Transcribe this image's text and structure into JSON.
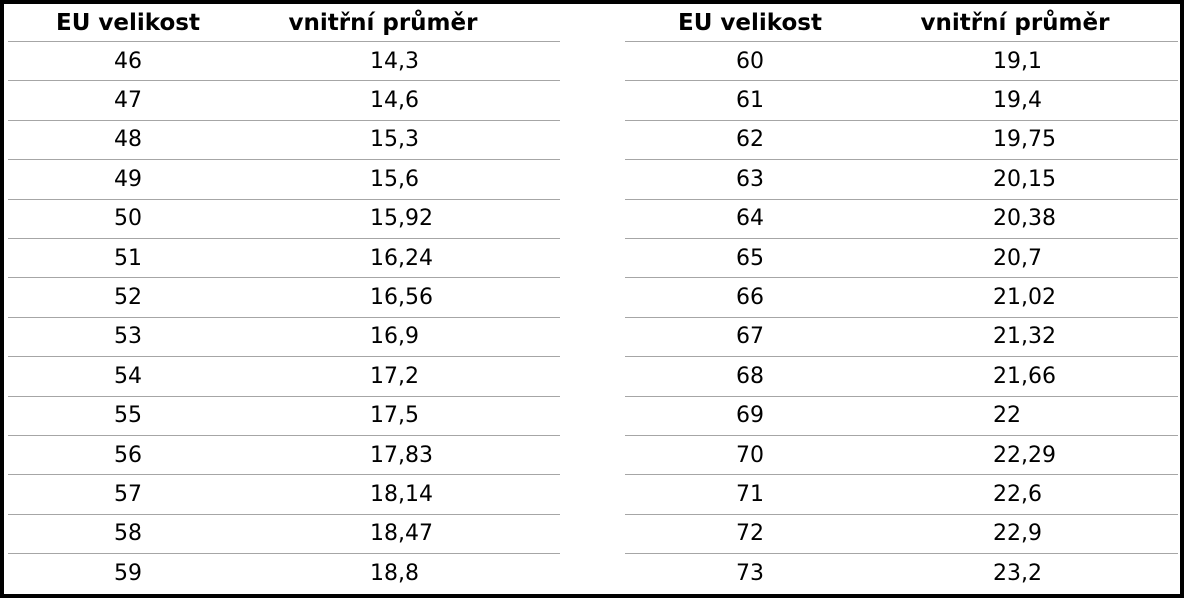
{
  "tables": [
    {
      "header": [
        "EU velikost",
        "vnitřní průměr"
      ],
      "rows": [
        [
          "46",
          "14,3"
        ],
        [
          "47",
          "14,6"
        ],
        [
          "48",
          "15,3"
        ],
        [
          "49",
          "15,6"
        ],
        [
          "50",
          "15,92"
        ],
        [
          "51",
          "16,24"
        ],
        [
          "52",
          "16,56"
        ],
        [
          "53",
          "16,9"
        ],
        [
          "54",
          "17,2"
        ],
        [
          "55",
          "17,5"
        ],
        [
          "56",
          "17,83"
        ],
        [
          "57",
          "18,14"
        ],
        [
          "58",
          "18,47"
        ],
        [
          "59",
          "18,8"
        ]
      ]
    },
    {
      "header": [
        "EU velikost",
        "vnitřní průměr"
      ],
      "rows": [
        [
          "60",
          "19,1"
        ],
        [
          "61",
          "19,4"
        ],
        [
          "62",
          "19,75"
        ],
        [
          "63",
          "20,15"
        ],
        [
          "64",
          "20,38"
        ],
        [
          "65",
          "20,7"
        ],
        [
          "66",
          "21,02"
        ],
        [
          "67",
          "21,32"
        ],
        [
          "68",
          "21,66"
        ],
        [
          "69",
          "22"
        ],
        [
          "70",
          "22,29"
        ],
        [
          "71",
          "22,6"
        ],
        [
          "72",
          "22,9"
        ],
        [
          "73",
          "23,2"
        ]
      ]
    }
  ]
}
